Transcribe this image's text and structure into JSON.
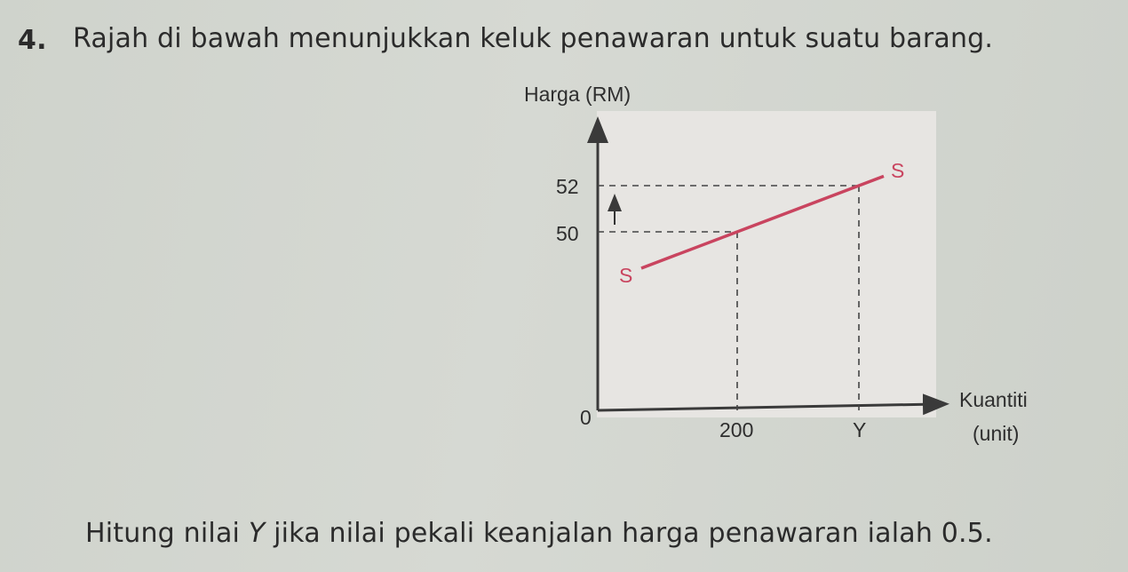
{
  "question": {
    "number": "4.",
    "intro": "Rajah di bawah menunjukkan keluk penawaran untuk suatu barang.",
    "task_before": "Hitung nilai ",
    "task_var": "Y",
    "task_after": " jika nilai pekali keanjalan harga penawaran ialah 0.5."
  },
  "chart_data": {
    "type": "line",
    "ylabel": "Harga (RM)",
    "xlabel_line1": "Kuantiti",
    "xlabel_line2": "(unit)",
    "origin_label": "0",
    "y_ticks": [
      "50",
      "52"
    ],
    "x_ticks": [
      "200",
      "Y"
    ],
    "series": [
      {
        "name": "S",
        "curve_label_start": "S",
        "curve_label_end": "S",
        "points": [
          {
            "x": "200",
            "y": 50
          },
          {
            "x": "Y",
            "y": 52
          }
        ]
      }
    ],
    "annotations": [
      "arrow-up"
    ],
    "grid": false,
    "colors": {
      "supply_curve": "#c9445f",
      "axes": "#3a3a3a",
      "panel": "#e7e5e2"
    }
  }
}
